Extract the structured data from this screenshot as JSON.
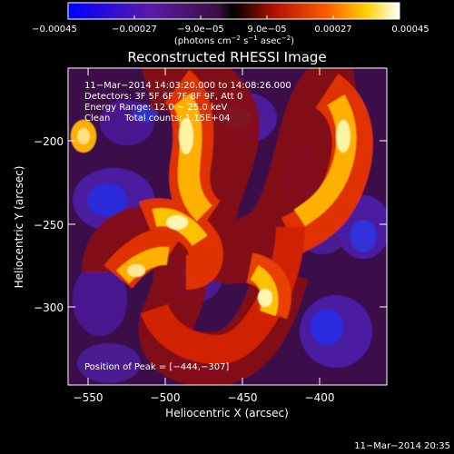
{
  "colorbar": {
    "tick_labels": [
      "−0.00045",
      "−0.00027",
      "−9.0e−05",
      "9.0e−05",
      "0.00027",
      "0.00045"
    ],
    "unit_label_main": "(photons cm",
    "unit_label_mid": " s",
    "unit_label_end": " asec",
    "unit_sup_1": "−2",
    "unit_sup_2": "−1",
    "unit_sup_3": "−2",
    "unit_close": ")"
  },
  "title": "Reconstructed RHESSI Image",
  "info_lines": {
    "time_range": "11−Mar−2014 14:03:20.000 to 14:08:26.000",
    "detectors": "Detectors: 3F 5F 6F 7F 8F 9F, Att 0",
    "energy": "Energy Range: 12.0 − 25.0 keV",
    "clean": "Clean     Total counts: 1.15E+04"
  },
  "peak_text": "Position of Peak = [−444,−307]",
  "axes": {
    "x_label": "Heliocentric X (arcsec)",
    "y_label": "Heliocentric Y (arcsec)",
    "x_ticks": [
      "−550",
      "−500",
      "−450",
      "−400"
    ],
    "y_ticks": [
      "−200",
      "−250",
      "−300"
    ]
  },
  "timestamp": "11−Mar−2014 20:35",
  "colors": {
    "background": "#000000",
    "axis": "#ffffff",
    "colormap_low": "#0000ff",
    "colormap_high": "#ffffff"
  }
}
